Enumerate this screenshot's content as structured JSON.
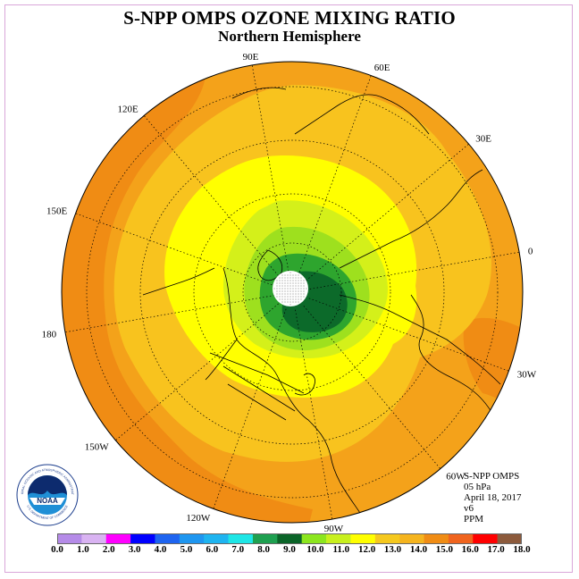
{
  "header": {
    "title": "S-NPP OMPS OZONE MIXING RATIO",
    "subtitle": "Northern Hemisphere"
  },
  "map": {
    "projection": "north polar stereographic",
    "longitude_labels": [
      "90E",
      "60E",
      "30E",
      "0",
      "30W",
      "60W",
      "90W",
      "120W",
      "150W",
      "180",
      "150E",
      "120E"
    ],
    "colors": {
      "orange_outer": "#f4a21a",
      "dark_orange": "#f08c14",
      "gold": "#f8c31e",
      "yellow": "#ffff00",
      "yellow_green": "#d4f01a",
      "light_green": "#9ee01e",
      "green": "#2ea52e",
      "dark_green": "#0c6a2a",
      "no_data_dot": "#ffffff"
    }
  },
  "info": {
    "instrument": "S-NPP OMPS",
    "level": "05 hPa",
    "date": "April 18, 2017",
    "version": "v6",
    "units": "PPM"
  },
  "logo": {
    "text": "NOAA",
    "ring_text": "NATIONAL OCEANIC AND ATMOSPHERIC ADMINISTRATION",
    "ring_text_bottom": "U.S. DEPARTMENT OF COMMERCE"
  },
  "colorbar": {
    "labels": [
      "0.0",
      "1.0",
      "2.0",
      "3.0",
      "4.0",
      "5.0",
      "6.0",
      "7.0",
      "8.0",
      "9.0",
      "10.0",
      "11.0",
      "12.0",
      "13.0",
      "14.0",
      "15.0",
      "16.0",
      "17.0",
      "18.0"
    ],
    "colors": [
      "#b58be8",
      "#d9b3f2",
      "#ff00ff",
      "#0000ff",
      "#1e64f0",
      "#1e96f0",
      "#1eb4f0",
      "#1ee6e6",
      "#1ea050",
      "#0a6428",
      "#8ce61e",
      "#c8f01e",
      "#ffff00",
      "#f5c81e",
      "#f5b41e",
      "#f08c14",
      "#f0641e",
      "#ff0000",
      "#8c5a3c"
    ]
  }
}
